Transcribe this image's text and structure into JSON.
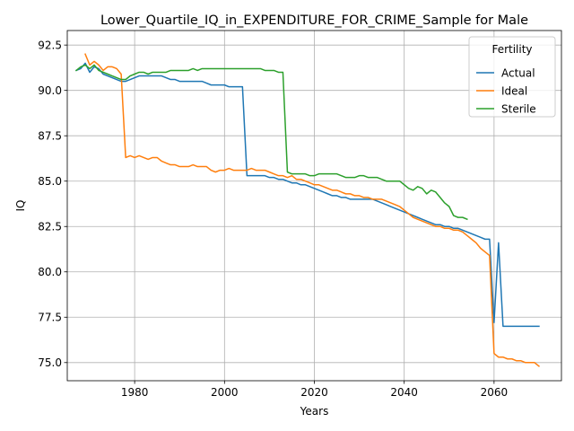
{
  "chart_data": {
    "type": "line",
    "title": "Lower_Quartile_IQ_in_EXPENDITURE_FOR_CRIME_Sample for Male",
    "xlabel": "Years",
    "ylabel": "IQ",
    "xlim": [
      1965,
      2075
    ],
    "ylim": [
      74.0,
      93.3
    ],
    "xticks": [
      1980,
      2000,
      2020,
      2040,
      2060
    ],
    "yticks": [
      75.0,
      77.5,
      80.0,
      82.5,
      85.0,
      87.5,
      90.0,
      92.5
    ],
    "ytick_labels": [
      "75.0",
      "77.5",
      "80.0",
      "82.5",
      "85.0",
      "87.5",
      "90.0",
      "92.5"
    ],
    "grid": true,
    "legend": {
      "title": "Fertility",
      "placement": "top-right"
    },
    "series": [
      {
        "name": "Actual",
        "color": "#1f77b4",
        "x": [
          1967,
          1968,
          1969,
          1970,
          1971,
          1972,
          1973,
          1974,
          1975,
          1976,
          1977,
          1978,
          1979,
          1980,
          1981,
          1982,
          1983,
          1984,
          1985,
          1986,
          1987,
          1988,
          1989,
          1990,
          1991,
          1992,
          1993,
          1994,
          1995,
          1996,
          1997,
          1998,
          1999,
          2000,
          2001,
          2002,
          2003,
          2004,
          2005,
          2006,
          2007,
          2008,
          2009,
          2010,
          2011,
          2012,
          2013,
          2014,
          2015,
          2016,
          2017,
          2018,
          2019,
          2020,
          2021,
          2022,
          2023,
          2024,
          2025,
          2026,
          2027,
          2028,
          2029,
          2030,
          2031,
          2032,
          2033,
          2034,
          2035,
          2036,
          2037,
          2038,
          2039,
          2040,
          2041,
          2042,
          2043,
          2044,
          2045,
          2046,
          2047,
          2048,
          2049,
          2050,
          2051,
          2052,
          2053,
          2054,
          2055,
          2056,
          2057,
          2058,
          2059,
          2060,
          2061,
          2062,
          2063,
          2064,
          2065,
          2066,
          2067,
          2068,
          2069,
          2070
        ],
        "values": [
          91.1,
          91.2,
          91.5,
          91.0,
          91.3,
          91.2,
          90.9,
          90.8,
          90.7,
          90.6,
          90.5,
          90.5,
          90.6,
          90.7,
          90.8,
          90.8,
          90.8,
          90.8,
          90.8,
          90.8,
          90.7,
          90.6,
          90.6,
          90.5,
          90.5,
          90.5,
          90.5,
          90.5,
          90.5,
          90.4,
          90.3,
          90.3,
          90.3,
          90.3,
          90.2,
          90.2,
          90.2,
          90.2,
          85.3,
          85.3,
          85.3,
          85.3,
          85.3,
          85.2,
          85.2,
          85.1,
          85.1,
          85.0,
          84.9,
          84.9,
          84.8,
          84.8,
          84.7,
          84.6,
          84.5,
          84.4,
          84.3,
          84.2,
          84.2,
          84.1,
          84.1,
          84.0,
          84.0,
          84.0,
          84.0,
          84.0,
          84.0,
          83.9,
          83.8,
          83.7,
          83.6,
          83.5,
          83.4,
          83.3,
          83.2,
          83.1,
          83.0,
          82.9,
          82.8,
          82.7,
          82.6,
          82.6,
          82.5,
          82.5,
          82.4,
          82.4,
          82.3,
          82.2,
          82.1,
          82.0,
          81.9,
          81.8,
          81.8,
          77.2,
          81.6,
          77.0,
          77.0,
          77.0,
          77.0,
          77.0,
          77.0,
          77.0,
          77.0,
          77.0
        ]
      },
      {
        "name": "Ideal",
        "color": "#ff7f0e",
        "x": [
          1969,
          1970,
          1971,
          1972,
          1973,
          1974,
          1975,
          1976,
          1977,
          1978,
          1979,
          1980,
          1981,
          1982,
          1983,
          1984,
          1985,
          1986,
          1987,
          1988,
          1989,
          1990,
          1991,
          1992,
          1993,
          1994,
          1995,
          1996,
          1997,
          1998,
          1999,
          2000,
          2001,
          2002,
          2003,
          2004,
          2005,
          2006,
          2007,
          2008,
          2009,
          2010,
          2011,
          2012,
          2013,
          2014,
          2015,
          2016,
          2017,
          2018,
          2019,
          2020,
          2021,
          2022,
          2023,
          2024,
          2025,
          2026,
          2027,
          2028,
          2029,
          2030,
          2031,
          2032,
          2033,
          2034,
          2035,
          2036,
          2037,
          2038,
          2039,
          2040,
          2041,
          2042,
          2043,
          2044,
          2045,
          2046,
          2047,
          2048,
          2049,
          2050,
          2051,
          2052,
          2053,
          2054,
          2055,
          2056,
          2057,
          2058,
          2059,
          2060,
          2061,
          2062,
          2063,
          2064,
          2065,
          2066,
          2067,
          2068,
          2069,
          2070
        ],
        "values": [
          92.0,
          91.4,
          91.6,
          91.4,
          91.1,
          91.3,
          91.3,
          91.2,
          90.9,
          86.3,
          86.4,
          86.3,
          86.4,
          86.3,
          86.2,
          86.3,
          86.3,
          86.1,
          86.0,
          85.9,
          85.9,
          85.8,
          85.8,
          85.8,
          85.9,
          85.8,
          85.8,
          85.8,
          85.6,
          85.5,
          85.6,
          85.6,
          85.7,
          85.6,
          85.6,
          85.6,
          85.6,
          85.7,
          85.6,
          85.6,
          85.6,
          85.5,
          85.4,
          85.3,
          85.3,
          85.2,
          85.3,
          85.1,
          85.1,
          85.0,
          84.9,
          84.8,
          84.8,
          84.7,
          84.6,
          84.5,
          84.5,
          84.4,
          84.3,
          84.3,
          84.2,
          84.2,
          84.1,
          84.1,
          84.0,
          84.0,
          84.0,
          83.9,
          83.8,
          83.7,
          83.6,
          83.4,
          83.2,
          83.0,
          82.9,
          82.8,
          82.7,
          82.6,
          82.5,
          82.5,
          82.4,
          82.4,
          82.3,
          82.3,
          82.2,
          82.0,
          81.8,
          81.6,
          81.3,
          81.1,
          80.9,
          75.5,
          75.3,
          75.3,
          75.2,
          75.2,
          75.1,
          75.1,
          75.0,
          75.0,
          75.0,
          74.8
        ]
      },
      {
        "name": "Sterile",
        "color": "#2ca02c",
        "x": [
          1967,
          1968,
          1969,
          1970,
          1971,
          1972,
          1973,
          1974,
          1975,
          1976,
          1977,
          1978,
          1979,
          1980,
          1981,
          1982,
          1983,
          1984,
          1985,
          1986,
          1987,
          1988,
          1989,
          1990,
          1991,
          1992,
          1993,
          1994,
          1995,
          1996,
          1997,
          1998,
          1999,
          2000,
          2001,
          2002,
          2003,
          2004,
          2005,
          2006,
          2007,
          2008,
          2009,
          2010,
          2011,
          2012,
          2013,
          2014,
          2015,
          2016,
          2017,
          2018,
          2019,
          2020,
          2021,
          2022,
          2023,
          2024,
          2025,
          2026,
          2027,
          2028,
          2029,
          2030,
          2031,
          2032,
          2033,
          2034,
          2035,
          2036,
          2037,
          2038,
          2039,
          2040,
          2041,
          2042,
          2043,
          2044,
          2045,
          2046,
          2047,
          2048,
          2049,
          2050,
          2051,
          2052,
          2053,
          2054
        ],
        "values": [
          91.1,
          91.3,
          91.4,
          91.2,
          91.4,
          91.1,
          91.0,
          90.9,
          90.8,
          90.7,
          90.6,
          90.6,
          90.8,
          90.9,
          91.0,
          91.0,
          90.9,
          91.0,
          91.0,
          91.0,
          91.0,
          91.1,
          91.1,
          91.1,
          91.1,
          91.1,
          91.2,
          91.1,
          91.2,
          91.2,
          91.2,
          91.2,
          91.2,
          91.2,
          91.2,
          91.2,
          91.2,
          91.2,
          91.2,
          91.2,
          91.2,
          91.2,
          91.1,
          91.1,
          91.1,
          91.0,
          91.0,
          85.5,
          85.4,
          85.4,
          85.4,
          85.4,
          85.3,
          85.3,
          85.4,
          85.4,
          85.4,
          85.4,
          85.4,
          85.3,
          85.2,
          85.2,
          85.2,
          85.3,
          85.3,
          85.2,
          85.2,
          85.2,
          85.1,
          85.0,
          85.0,
          85.0,
          85.0,
          84.8,
          84.6,
          84.5,
          84.7,
          84.6,
          84.3,
          84.5,
          84.4,
          84.1,
          83.8,
          83.6,
          83.1,
          83.0,
          83.0,
          82.9
        ]
      }
    ]
  }
}
